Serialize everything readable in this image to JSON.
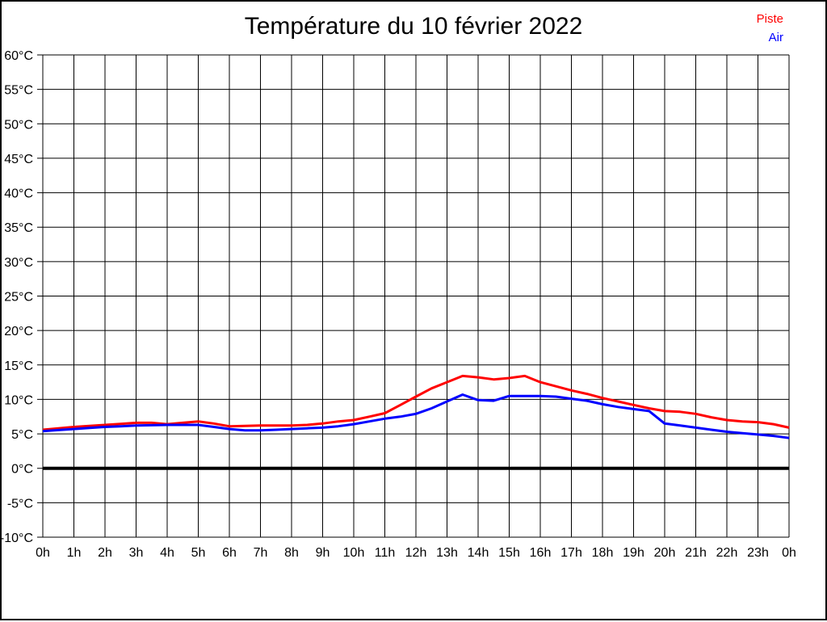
{
  "page": {
    "background": "#ffffff",
    "frame_color": "#000000"
  },
  "header": {
    "title": "Température du 10 février 2022"
  },
  "legend": {
    "position": "top-right",
    "items": [
      {
        "label": "Piste",
        "color": "#ff0000"
      },
      {
        "label": "Air",
        "color": "#0000ff"
      }
    ]
  },
  "chart_data": {
    "type": "line",
    "title": "Température du 10 février 2022",
    "xlabel": "",
    "ylabel": "",
    "xlim": [
      0,
      24
    ],
    "ylim": [
      -10,
      60
    ],
    "y_step": 5,
    "grid": true,
    "grid_color": "#000000",
    "zero_line": {
      "value": 0,
      "color": "#000000",
      "thick": true
    },
    "x_tick_labels": [
      "0h",
      "1h",
      "2h",
      "3h",
      "4h",
      "5h",
      "6h",
      "7h",
      "8h",
      "9h",
      "10h",
      "11h",
      "12h",
      "13h",
      "14h",
      "15h",
      "16h",
      "17h",
      "18h",
      "19h",
      "20h",
      "21h",
      "22h",
      "23h",
      "0h"
    ],
    "y_tick_labels": [
      "60°C",
      "55°C",
      "50°C",
      "45°C",
      "40°C",
      "35°C",
      "30°C",
      "25°C",
      "20°C",
      "15°C",
      "10°C",
      "5°C",
      "0°C",
      "-5°C",
      "-10°C"
    ],
    "x": [
      0,
      0.5,
      1,
      1.5,
      2,
      2.5,
      3,
      3.5,
      4,
      4.5,
      5,
      5.5,
      6,
      6.5,
      7,
      7.5,
      8,
      8.5,
      9,
      9.5,
      10,
      10.5,
      11,
      11.5,
      12,
      12.5,
      13,
      13.5,
      14,
      14.5,
      15,
      15.5,
      16,
      16.5,
      17,
      17.5,
      18,
      18.5,
      19,
      19.5,
      20,
      20.5,
      21,
      21.5,
      22,
      22.5,
      23,
      23.5,
      24
    ],
    "series": [
      {
        "name": "Piste",
        "color": "#ff0000",
        "values": [
          5.6,
          5.8,
          6.0,
          6.15,
          6.3,
          6.45,
          6.6,
          6.6,
          6.4,
          6.6,
          6.8,
          6.5,
          6.1,
          6.15,
          6.2,
          6.2,
          6.2,
          6.3,
          6.5,
          6.8,
          7.0,
          7.5,
          8.0,
          9.2,
          10.4,
          11.6,
          12.5,
          13.4,
          13.2,
          12.9,
          13.1,
          13.4,
          12.5,
          11.9,
          11.3,
          10.8,
          10.2,
          9.7,
          9.2,
          8.7,
          8.3,
          8.2,
          7.9,
          7.4,
          7.0,
          6.8,
          6.7,
          6.4,
          5.9
        ]
      },
      {
        "name": "Air",
        "color": "#0000ff",
        "values": [
          5.4,
          5.55,
          5.7,
          5.85,
          6.0,
          6.1,
          6.2,
          6.25,
          6.3,
          6.3,
          6.3,
          6.0,
          5.7,
          5.5,
          5.5,
          5.6,
          5.7,
          5.8,
          5.9,
          6.1,
          6.4,
          6.8,
          7.2,
          7.5,
          7.9,
          8.7,
          9.7,
          10.7,
          9.9,
          9.8,
          10.5,
          10.5,
          10.5,
          10.4,
          10.1,
          9.8,
          9.3,
          8.9,
          8.6,
          8.3,
          6.5,
          6.2,
          5.9,
          5.6,
          5.3,
          5.1,
          4.9,
          4.7,
          4.4
        ]
      }
    ],
    "legend_position": "top-right"
  }
}
